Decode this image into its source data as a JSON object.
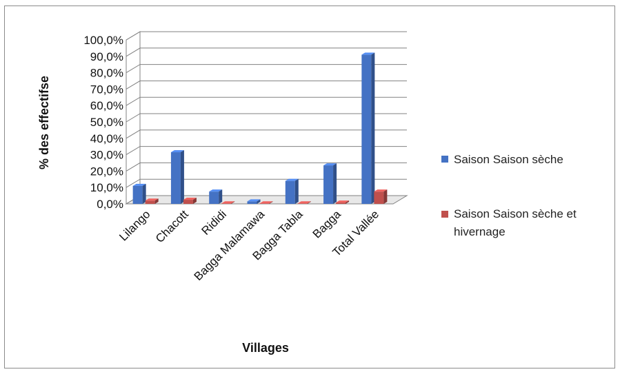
{
  "chart_data": {
    "type": "bar",
    "title": "",
    "xlabel": "Villages",
    "ylabel": "% des effectifse",
    "categories": [
      "Lilango",
      "Chacott",
      "Rididi",
      "Bagga Malamawa",
      "Bagga Tabla",
      "Bagga",
      "Total Vallée"
    ],
    "series": [
      {
        "name": "Saison Saison sèche",
        "values": [
          11.0,
          31.5,
          7.5,
          1.5,
          14.0,
          23.5,
          91.0
        ],
        "color": "#4472C4"
      },
      {
        "name": "Saison Saison sèche et hivernage",
        "values": [
          2.0,
          2.5,
          0.3,
          0.3,
          0.3,
          0.8,
          7.5
        ],
        "color": "#C0504D"
      }
    ],
    "yticks": [
      "0,0%",
      "10,0%",
      "20,0%",
      "30,0%",
      "40,0%",
      "50,0%",
      "60,0%",
      "70,0%",
      "80,0%",
      "90,0%",
      "100,0%"
    ],
    "ylim": [
      0,
      100
    ],
    "grid": true,
    "legend_position": "right",
    "three_d": true
  }
}
